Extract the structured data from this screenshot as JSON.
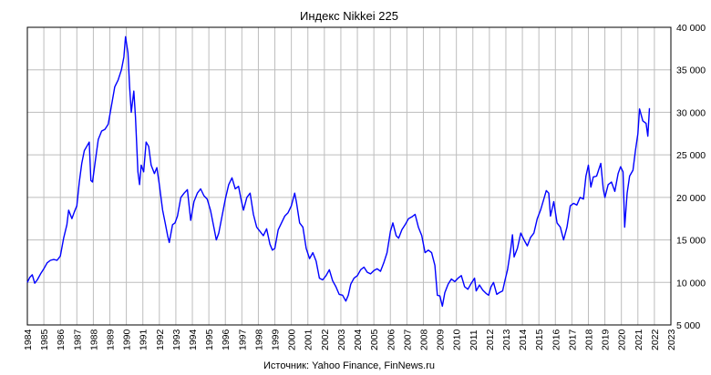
{
  "chart_data": {
    "type": "line",
    "title": "Индекс Nikkei 225",
    "source": "Источник: Yahoo Finance, FinNews.ru",
    "xlim": [
      1984,
      2023
    ],
    "ylim": [
      5000,
      40000
    ],
    "yticks": [
      {
        "value": 5000,
        "label": "5 000"
      },
      {
        "value": 10000,
        "label": "10 000"
      },
      {
        "value": 15000,
        "label": "15 000"
      },
      {
        "value": 20000,
        "label": "20 000"
      },
      {
        "value": 25000,
        "label": "25 000"
      },
      {
        "value": 30000,
        "label": "30 000"
      },
      {
        "value": 35000,
        "label": "35 000"
      },
      {
        "value": 40000,
        "label": "40 000"
      }
    ],
    "xticks": [
      "1984",
      "1985",
      "1986",
      "1987",
      "1988",
      "1989",
      "1990",
      "1991",
      "1992",
      "1993",
      "1994",
      "1995",
      "1996",
      "1997",
      "1998",
      "1999",
      "2000",
      "2001",
      "2002",
      "2003",
      "2004",
      "2005",
      "2006",
      "2007",
      "2008",
      "2009",
      "2010",
      "2011",
      "2012",
      "2013",
      "2014",
      "2015",
      "2016",
      "2017",
      "2018",
      "2019",
      "2020",
      "2021",
      "2022",
      "2023"
    ],
    "grid": true,
    "line_color": "#0000ff",
    "series": [
      {
        "points": [
          [
            1984.0,
            10000
          ],
          [
            1984.15,
            10600
          ],
          [
            1984.3,
            10900
          ],
          [
            1984.45,
            9900
          ],
          [
            1984.6,
            10300
          ],
          [
            1984.8,
            11000
          ],
          [
            1985.0,
            11600
          ],
          [
            1985.2,
            12300
          ],
          [
            1985.4,
            12600
          ],
          [
            1985.6,
            12700
          ],
          [
            1985.8,
            12600
          ],
          [
            1986.0,
            13100
          ],
          [
            1986.2,
            15200
          ],
          [
            1986.4,
            16800
          ],
          [
            1986.5,
            18500
          ],
          [
            1986.7,
            17500
          ],
          [
            1986.85,
            18300
          ],
          [
            1987.0,
            19000
          ],
          [
            1987.15,
            21800
          ],
          [
            1987.3,
            24000
          ],
          [
            1987.45,
            25500
          ],
          [
            1987.6,
            26000
          ],
          [
            1987.75,
            26500
          ],
          [
            1987.85,
            22000
          ],
          [
            1987.95,
            21800
          ],
          [
            1988.1,
            24000
          ],
          [
            1988.3,
            26800
          ],
          [
            1988.5,
            27800
          ],
          [
            1988.7,
            28000
          ],
          [
            1988.9,
            28600
          ],
          [
            1989.1,
            30800
          ],
          [
            1989.3,
            33000
          ],
          [
            1989.5,
            33800
          ],
          [
            1989.7,
            35000
          ],
          [
            1989.85,
            36500
          ],
          [
            1989.95,
            38900
          ],
          [
            1990.1,
            37000
          ],
          [
            1990.2,
            33000
          ],
          [
            1990.3,
            30000
          ],
          [
            1990.45,
            32500
          ],
          [
            1990.55,
            29500
          ],
          [
            1990.7,
            23000
          ],
          [
            1990.8,
            21500
          ],
          [
            1990.9,
            23800
          ],
          [
            1991.05,
            23000
          ],
          [
            1991.2,
            26500
          ],
          [
            1991.35,
            26000
          ],
          [
            1991.5,
            23800
          ],
          [
            1991.7,
            22800
          ],
          [
            1991.85,
            23500
          ],
          [
            1992.0,
            21500
          ],
          [
            1992.2,
            18500
          ],
          [
            1992.35,
            17000
          ],
          [
            1992.5,
            15500
          ],
          [
            1992.6,
            14700
          ],
          [
            1992.8,
            16800
          ],
          [
            1992.95,
            17000
          ],
          [
            1993.1,
            17800
          ],
          [
            1993.3,
            20000
          ],
          [
            1993.5,
            20500
          ],
          [
            1993.7,
            20900
          ],
          [
            1993.9,
            17300
          ],
          [
            1994.1,
            19500
          ],
          [
            1994.3,
            20500
          ],
          [
            1994.5,
            21000
          ],
          [
            1994.7,
            20200
          ],
          [
            1994.9,
            19800
          ],
          [
            1995.1,
            18500
          ],
          [
            1995.3,
            16500
          ],
          [
            1995.45,
            15000
          ],
          [
            1995.6,
            15800
          ],
          [
            1995.8,
            17800
          ],
          [
            1996.0,
            19800
          ],
          [
            1996.2,
            21500
          ],
          [
            1996.4,
            22300
          ],
          [
            1996.6,
            21000
          ],
          [
            1996.8,
            21300
          ],
          [
            1996.95,
            19800
          ],
          [
            1997.1,
            18500
          ],
          [
            1997.3,
            20000
          ],
          [
            1997.5,
            20500
          ],
          [
            1997.7,
            18000
          ],
          [
            1997.9,
            16500
          ],
          [
            1998.1,
            16000
          ],
          [
            1998.3,
            15500
          ],
          [
            1998.5,
            16300
          ],
          [
            1998.7,
            14500
          ],
          [
            1998.85,
            13800
          ],
          [
            1999.0,
            14000
          ],
          [
            1999.2,
            16200
          ],
          [
            1999.4,
            17000
          ],
          [
            1999.6,
            17800
          ],
          [
            1999.8,
            18200
          ],
          [
            2000.0,
            19000
          ],
          [
            2000.2,
            20500
          ],
          [
            2000.3,
            19500
          ],
          [
            2000.5,
            17000
          ],
          [
            2000.7,
            16500
          ],
          [
            2000.9,
            14000
          ],
          [
            2001.1,
            12800
          ],
          [
            2001.3,
            13500
          ],
          [
            2001.5,
            12500
          ],
          [
            2001.7,
            10500
          ],
          [
            2001.9,
            10300
          ],
          [
            2002.1,
            10800
          ],
          [
            2002.3,
            11500
          ],
          [
            2002.5,
            10200
          ],
          [
            2002.7,
            9500
          ],
          [
            2002.9,
            8600
          ],
          [
            2003.1,
            8500
          ],
          [
            2003.3,
            7800
          ],
          [
            2003.45,
            8500
          ],
          [
            2003.6,
            9800
          ],
          [
            2003.8,
            10500
          ],
          [
            2004.0,
            10800
          ],
          [
            2004.2,
            11500
          ],
          [
            2004.4,
            11800
          ],
          [
            2004.6,
            11200
          ],
          [
            2004.8,
            11000
          ],
          [
            2005.0,
            11400
          ],
          [
            2005.2,
            11600
          ],
          [
            2005.4,
            11300
          ],
          [
            2005.6,
            12300
          ],
          [
            2005.8,
            13500
          ],
          [
            2006.0,
            16000
          ],
          [
            2006.15,
            17000
          ],
          [
            2006.35,
            15500
          ],
          [
            2006.5,
            15200
          ],
          [
            2006.7,
            16200
          ],
          [
            2006.9,
            16800
          ],
          [
            2007.1,
            17500
          ],
          [
            2007.3,
            17700
          ],
          [
            2007.5,
            18000
          ],
          [
            2007.7,
            16500
          ],
          [
            2007.9,
            15500
          ],
          [
            2008.1,
            13500
          ],
          [
            2008.3,
            13800
          ],
          [
            2008.5,
            13500
          ],
          [
            2008.7,
            12000
          ],
          [
            2008.85,
            8500
          ],
          [
            2009.0,
            8400
          ],
          [
            2009.15,
            7200
          ],
          [
            2009.3,
            8800
          ],
          [
            2009.5,
            9800
          ],
          [
            2009.7,
            10400
          ],
          [
            2009.9,
            10100
          ],
          [
            2010.1,
            10500
          ],
          [
            2010.3,
            10800
          ],
          [
            2010.5,
            9500
          ],
          [
            2010.7,
            9200
          ],
          [
            2010.9,
            9900
          ],
          [
            2011.1,
            10500
          ],
          [
            2011.2,
            9000
          ],
          [
            2011.4,
            9700
          ],
          [
            2011.6,
            9100
          ],
          [
            2011.8,
            8700
          ],
          [
            2011.95,
            8500
          ],
          [
            2012.1,
            9500
          ],
          [
            2012.25,
            10000
          ],
          [
            2012.45,
            8600
          ],
          [
            2012.6,
            8800
          ],
          [
            2012.8,
            9000
          ],
          [
            2012.95,
            10300
          ],
          [
            2013.1,
            11500
          ],
          [
            2013.3,
            14000
          ],
          [
            2013.4,
            15600
          ],
          [
            2013.5,
            13000
          ],
          [
            2013.7,
            14000
          ],
          [
            2013.9,
            15800
          ],
          [
            2014.1,
            15000
          ],
          [
            2014.3,
            14300
          ],
          [
            2014.5,
            15300
          ],
          [
            2014.7,
            15800
          ],
          [
            2014.9,
            17500
          ],
          [
            2015.1,
            18500
          ],
          [
            2015.3,
            19800
          ],
          [
            2015.45,
            20800
          ],
          [
            2015.6,
            20500
          ],
          [
            2015.7,
            17800
          ],
          [
            2015.9,
            19500
          ],
          [
            2016.1,
            17000
          ],
          [
            2016.3,
            16500
          ],
          [
            2016.5,
            15000
          ],
          [
            2016.7,
            16500
          ],
          [
            2016.9,
            19000
          ],
          [
            2017.1,
            19300
          ],
          [
            2017.3,
            19100
          ],
          [
            2017.5,
            20000
          ],
          [
            2017.7,
            19800
          ],
          [
            2017.85,
            22500
          ],
          [
            2018.0,
            23800
          ],
          [
            2018.15,
            21200
          ],
          [
            2018.3,
            22400
          ],
          [
            2018.5,
            22500
          ],
          [
            2018.75,
            24000
          ],
          [
            2018.9,
            21000
          ],
          [
            2019.0,
            20000
          ],
          [
            2019.2,
            21500
          ],
          [
            2019.4,
            21800
          ],
          [
            2019.6,
            20700
          ],
          [
            2019.8,
            22800
          ],
          [
            2019.95,
            23600
          ],
          [
            2020.1,
            23000
          ],
          [
            2020.2,
            16500
          ],
          [
            2020.35,
            20500
          ],
          [
            2020.5,
            22500
          ],
          [
            2020.7,
            23200
          ],
          [
            2020.85,
            25500
          ],
          [
            2021.0,
            27500
          ],
          [
            2021.1,
            30400
          ],
          [
            2021.3,
            29000
          ],
          [
            2021.5,
            28700
          ],
          [
            2021.6,
            27200
          ],
          [
            2021.7,
            30500
          ]
        ]
      }
    ]
  }
}
